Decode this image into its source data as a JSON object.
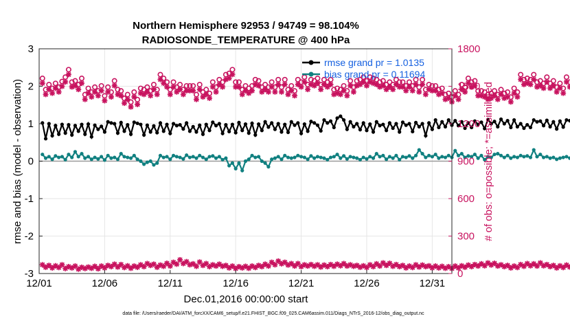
{
  "chart_data": {
    "type": "line",
    "title": "Northern Hemisphere 92953 / 94749 = 98.104%",
    "subtitle": "RADIOSONDE_TEMPERATURE @ 400 hPa",
    "xlabel": "Dec.01,2016 00:00:00 start",
    "ylabel_left": "rmse and bias (model - observation)",
    "ylabel_right": "# of obs: o=possible; *=assimilated",
    "footnote": "data file: /Users/raeder/DAI/ATM_forcXX/CAM6_setup/f.e21.FHIST_BGC.f09_025.CAM6assim.011/Diags_NTrS_2016-12/obs_diag_output.nc",
    "xlim": [
      0,
      31.5
    ],
    "ylim_left": [
      -3,
      3
    ],
    "ylim_right": [
      0,
      1800
    ],
    "x_tick_values": [
      0,
      5,
      10,
      15,
      20,
      25,
      30
    ],
    "x_tick_labels": [
      "12/01",
      "12/06",
      "12/11",
      "12/16",
      "12/21",
      "12/26",
      "12/31"
    ],
    "y_ticks_left": [
      "3",
      "2",
      "1",
      "0",
      "-1",
      "-2",
      "-3"
    ],
    "y_ticks_right": [
      "1800",
      "1500",
      "1200",
      "900",
      "600",
      "300",
      "0"
    ],
    "zero_line": 0,
    "grid": true,
    "colors": {
      "rmse": "#000000",
      "bias": "#108080",
      "obs": "#c8135f",
      "legend_text": "#1560e0",
      "zero": "#9a9a9a"
    },
    "legend": [
      {
        "label": "rmse grand pr = 1.0135",
        "color": "#000000"
      },
      {
        "label": "bias grand pr = 0.11694",
        "color": "#108080"
      }
    ],
    "x_step": 0.25,
    "series": [
      {
        "name": "rmse",
        "axis": "left",
        "values": [
          1.02,
          0.6,
          1.0,
          0.68,
          0.95,
          0.72,
          0.98,
          0.75,
          0.97,
          0.7,
          0.95,
          0.8,
          0.98,
          0.72,
          0.99,
          0.65,
          0.96,
          0.85,
          0.93,
          0.78,
          1.05,
          1.02,
          1.0,
          0.75,
          1.03,
          0.8,
          0.97,
          0.72,
          1.04,
          1.01,
          0.98,
          0.7,
          0.96,
          0.78,
          0.94,
          0.76,
          1.02,
          0.8,
          0.98,
          0.74,
          1.0,
          0.95,
          0.97,
          0.86,
          1.02,
          0.8,
          0.92,
          0.78,
          0.96,
          0.72,
          0.98,
          0.82,
          1.04,
          0.95,
          1.0,
          0.74,
          0.97,
          0.79,
          0.98,
          0.76,
          1.03,
          0.82,
          0.99,
          0.75,
          1.01,
          0.7,
          0.99,
          0.82,
          1.05,
          0.91,
          1.02,
          0.85,
          1.0,
          0.78,
          0.98,
          0.77,
          1.05,
          0.96,
          1.02,
          0.74,
          0.99,
          0.8,
          1.06,
          1.02,
          0.96,
          0.81,
          1.1,
          1.02,
          1.07,
          0.9,
          1.15,
          1.2,
          1.1,
          0.85,
          1.05,
          0.92,
          1.0,
          0.84,
          1.02,
          0.82,
          0.99,
          0.78,
          1.05,
          0.95,
          0.98,
          0.82,
          1.02,
          0.88,
          1.0,
          0.78,
          1.04,
          0.96,
          1.0,
          0.79,
          1.03,
          0.92,
          1.0,
          0.68,
          1.02,
          0.85,
          1.1,
          0.9,
          1.05,
          0.92,
          1.1,
          0.96,
          1.08,
          0.95,
          1.05,
          0.88,
          1.02,
          0.9,
          1.07,
          0.98,
          1.04,
          0.87,
          1.11,
          1.0,
          1.06,
          0.92,
          1.12,
          1.0,
          1.08,
          0.9,
          1.1,
          0.92,
          1.0,
          0.88,
          0.97,
          0.9,
          1.1,
          1.05,
          1.07,
          0.95,
          1.09,
          0.92,
          1.05,
          0.86,
          1.07,
          0.91,
          1.1,
          1.08,
          1.05,
          0.86,
          1.1,
          0.98,
          1.06,
          0.88,
          1.07,
          0.94,
          1.02,
          0.88,
          1.05,
          0.92,
          1.0,
          0.98
        ]
      },
      {
        "name": "bias",
        "axis": "left",
        "values": [
          0.18,
          0.08,
          0.12,
          0.05,
          0.14,
          0.1,
          0.12,
          0.04,
          0.18,
          0.1,
          0.25,
          0.12,
          0.2,
          0.08,
          0.12,
          0.05,
          0.1,
          0.06,
          0.12,
          0.03,
          0.15,
          0.08,
          0.1,
          0.05,
          0.2,
          0.12,
          0.1,
          0.08,
          0.15,
          0.05,
          0.0,
          -0.08,
          -0.03,
          0.0,
          -0.1,
          -0.05,
          0.15,
          0.1,
          0.12,
          0.05,
          0.15,
          0.12,
          0.1,
          0.06,
          0.16,
          0.1,
          0.12,
          0.08,
          0.15,
          0.1,
          0.05,
          0.12,
          0.14,
          0.08,
          0.12,
          0.04,
          0.08,
          -0.12,
          -0.05,
          -0.2,
          -0.05,
          -0.25,
          0.0,
          0.05,
          0.15,
          0.1,
          0.12,
          0.0,
          -0.05,
          -0.15,
          0.05,
          0.08,
          0.12,
          0.05,
          0.15,
          0.1,
          0.08,
          0.1,
          0.15,
          0.12,
          0.1,
          0.05,
          0.14,
          0.08,
          0.12,
          0.1,
          0.08,
          0.04,
          0.1,
          0.12,
          0.18,
          0.08,
          0.14,
          0.06,
          0.12,
          0.1,
          0.08,
          0.04,
          0.1,
          0.06,
          0.12,
          0.08,
          0.2,
          0.12,
          0.15,
          0.05,
          0.12,
          0.08,
          0.15,
          0.04,
          0.12,
          0.1,
          0.14,
          0.08,
          0.15,
          0.3,
          0.2,
          0.1,
          0.15,
          0.12,
          0.18,
          0.08,
          0.12,
          0.1,
          0.15,
          0.1,
          0.28,
          0.15,
          0.2,
          0.1,
          0.14,
          0.12,
          0.18,
          0.08,
          0.15,
          0.04,
          0.12,
          0.1,
          0.18,
          0.2,
          0.15,
          0.1,
          0.15,
          0.08,
          0.12,
          0.1,
          0.15,
          0.12,
          0.14,
          0.1,
          0.3,
          0.12,
          0.18,
          0.1,
          0.12,
          0.08,
          0.1,
          0.05,
          0.08,
          0.1,
          0.12,
          0.08,
          0.2,
          0.12,
          0.12,
          0.1,
          0.08,
          0.05,
          0.15,
          0.1,
          0.12,
          0.08,
          0.12,
          0.0,
          0.08,
          0.1,
          0.12,
          0.08,
          0.1,
          0.05,
          0.12,
          0.08
        ]
      },
      {
        "name": "possible",
        "axis": "right",
        "values": [
          1530,
          1440,
          1480,
          1450,
          1490,
          1460,
          1505,
          1540,
          1600,
          1500,
          1510,
          1480,
          1530,
          1400,
          1450,
          1420,
          1460,
          1430,
          1470,
          1390,
          1460,
          1420,
          1510,
          1440,
          1430,
          1370,
          1400,
          1340,
          1420,
          1360,
          1450,
          1440,
          1460,
          1430,
          1480,
          1440,
          1560,
          1530,
          1500,
          1440,
          1500,
          1460,
          1480,
          1440,
          1470,
          1470,
          1470,
          1400,
          1480,
          1420,
          1440,
          1410,
          1500,
          1460,
          1520,
          1500,
          1560,
          1570,
          1600,
          1500,
          1500,
          1440,
          1470,
          1450,
          1470,
          1520,
          1510,
          1460,
          1480,
          1460,
          1500,
          1460,
          1520,
          1460,
          1520,
          1440,
          1470,
          1430,
          1520,
          1500,
          1540,
          1480,
          1520,
          1510,
          1530,
          1480,
          1520,
          1500,
          1520,
          1440,
          1450,
          1440,
          1470,
          1430,
          1510,
          1460,
          1510,
          1520,
          1540,
          1510,
          1540,
          1530,
          1520,
          1500,
          1510,
          1480,
          1500,
          1480,
          1520,
          1500,
          1500,
          1470,
          1500,
          1470,
          1520,
          1460,
          1520,
          1440,
          1480,
          1470,
          1470,
          1440,
          1450,
          1400,
          1410,
          1380,
          1430,
          1400,
          1480,
          1460,
          1530,
          1500,
          1510,
          1430,
          1430,
          1420,
          1400,
          1410,
          1430,
          1400,
          1440,
          1410,
          1420,
          1380,
          1450,
          1420,
          1560,
          1520,
          1530,
          1520,
          1560,
          1500,
          1510,
          1490,
          1540,
          1490,
          1510,
          1460,
          1490,
          1450,
          1540,
          1500,
          1500,
          1450,
          1520,
          1440,
          1500,
          1450,
          1510,
          1470,
          1480,
          1440,
          1510,
          1440,
          1500,
          1470,
          1520,
          1440,
          1470,
          1400,
          1440,
          1380
        ]
      },
      {
        "name": "assimilated",
        "axis": "right",
        "values": [
          70,
          50,
          65,
          45,
          62,
          48,
          70,
          40,
          55,
          45,
          60,
          35,
          50,
          40,
          52,
          42,
          58,
          38,
          60,
          45,
          65,
          55,
          75,
          52,
          72,
          48,
          62,
          42,
          60,
          50,
          70,
          55,
          80,
          65,
          75,
          50,
          68,
          58,
          82,
          60,
          90,
          75,
          110,
          80,
          95,
          70,
          78,
          58,
          92,
          65,
          80,
          55,
          70,
          60,
          75,
          58,
          65,
          45,
          60,
          40,
          55,
          45,
          58,
          42,
          60,
          48,
          65,
          55,
          75,
          60,
          90,
          70,
          100,
          78,
          90,
          68,
          80,
          60,
          80,
          55,
          70,
          60,
          72,
          58,
          70,
          52,
          68,
          55,
          72,
          58,
          75,
          62,
          80,
          60,
          70,
          58,
          65,
          50,
          62,
          48,
          70,
          55,
          78,
          60,
          85,
          65,
          82,
          58,
          72,
          55,
          65,
          45,
          60,
          48,
          70,
          52,
          68,
          55,
          62,
          45,
          60,
          45,
          58,
          42,
          55,
          40,
          60,
          45,
          62,
          50,
          68,
          55,
          72,
          60,
          78,
          62,
          85,
          68,
          82,
          60,
          70,
          55,
          65,
          45,
          60,
          48,
          72,
          58,
          80,
          62,
          78,
          60,
          85,
          62,
          72,
          55,
          65,
          45,
          62,
          48,
          68,
          52,
          70,
          55,
          78,
          58,
          82,
          60,
          72,
          58,
          70,
          55,
          68,
          50,
          62,
          45,
          60,
          40,
          50,
          30,
          40,
          20
        ]
      }
    ]
  }
}
